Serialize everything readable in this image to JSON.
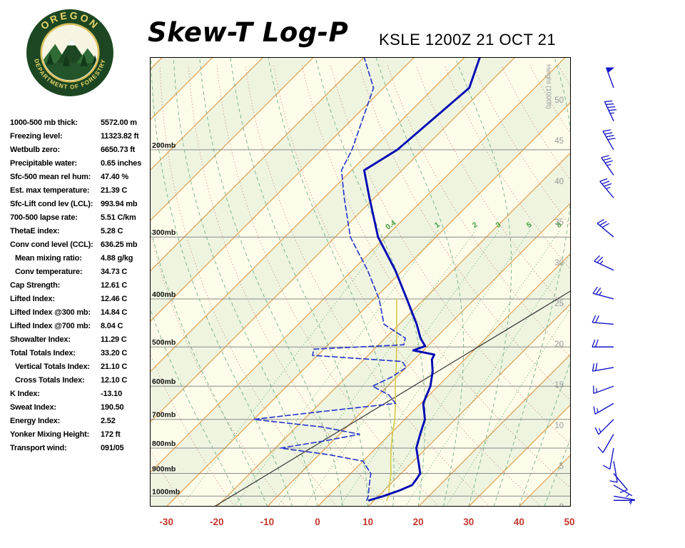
{
  "header": {
    "title": "Skew-T Log-P",
    "station": "KSLE 1200Z 21 OCT 21",
    "logo": {
      "top_text": "OREGON",
      "bottom_text": "DEPARTMENT OF FORESTRY"
    }
  },
  "indices": [
    {
      "label": "1000-500 mb thick:",
      "value": "5572.00 m",
      "indent": false
    },
    {
      "label": "Freezing level:",
      "value": "11323.82 ft",
      "indent": false
    },
    {
      "label": "Wetbulb zero:",
      "value": "6650.73 ft",
      "indent": false
    },
    {
      "label": "Precipitable water:",
      "value": "0.65 inches",
      "indent": false
    },
    {
      "label": "Sfc-500 mean rel hum:",
      "value": "47.40 %",
      "indent": false
    },
    {
      "label": "Est. max temperature:",
      "value": "21.39 C",
      "indent": false
    },
    {
      "label": "Sfc-Lift cond lev (LCL):",
      "value": "993.94 mb",
      "indent": false
    },
    {
      "label": "700-500 lapse rate:",
      "value": "5.51 C/km",
      "indent": false
    },
    {
      "label": "ThetaE index:",
      "value": "5.28 C",
      "indent": false
    },
    {
      "label": "Conv cond level (CCL):",
      "value": "636.25 mb",
      "indent": false
    },
    {
      "label": "Mean mixing ratio:",
      "value": "4.88 g/kg",
      "indent": true
    },
    {
      "label": "Conv temperature:",
      "value": "34.73 C",
      "indent": true
    },
    {
      "label": "Cap Strength:",
      "value": "12.61 C",
      "indent": false
    },
    {
      "label": "Lifted Index:",
      "value": "12.46 C",
      "indent": false
    },
    {
      "label": "Lifted Index @300 mb:",
      "value": "14.84 C",
      "indent": false
    },
    {
      "label": "Lifted Index @700 mb:",
      "value": "8.04 C",
      "indent": false
    },
    {
      "label": "Showalter Index:",
      "value": "11.29 C",
      "indent": false
    },
    {
      "label": "Total Totals Index:",
      "value": "33.20 C",
      "indent": false
    },
    {
      "label": "Vertical Totals Index:",
      "value": "21.10 C",
      "indent": true
    },
    {
      "label": "Cross Totals Index:",
      "value": "12.10 C",
      "indent": true
    },
    {
      "label": "K Index:",
      "value": "-13.10",
      "indent": false
    },
    {
      "label": "Sweat Index:",
      "value": "190.50",
      "indent": false
    },
    {
      "label": "Energy Index:",
      "value": "2.52",
      "indent": false
    },
    {
      "label": "Yonker Mixing Height:",
      "value": "172 ft",
      "indent": false
    },
    {
      "label": "Transport wind:",
      "value": "091/05",
      "indent": false
    }
  ],
  "chart_data": {
    "type": "skewt-log-p",
    "title": "Skew-T Log-P",
    "station_time": "KSLE 1200Z 21 OCT 21",
    "pressure_axis": {
      "top_mb": 130,
      "bottom_mb": 1050,
      "gridlines_mb": [
        200,
        300,
        400,
        500,
        600,
        700,
        800,
        900,
        1000
      ],
      "unit": "mb"
    },
    "temperature_axis": {
      "ticks_c": [
        -30,
        -20,
        -10,
        0,
        10,
        20,
        30,
        40,
        50
      ],
      "unit": "C"
    },
    "height_axis": {
      "label": "Height (1000ft)",
      "ticks_kft": [
        50,
        45,
        40,
        35,
        30,
        25,
        20,
        15,
        10,
        5,
        0
      ]
    },
    "mixing_ratio_lines_gkg": [
      0.4,
      1,
      2,
      3,
      5,
      8,
      12,
      20
    ],
    "mixing_ratio_labels": [
      "0.4",
      "1",
      "2",
      "3",
      "5",
      "8"
    ],
    "temperature_profile": [
      [
        1020,
        9
      ],
      [
        1000,
        11
      ],
      [
        975,
        13
      ],
      [
        950,
        14.5
      ],
      [
        925,
        14.2
      ],
      [
        900,
        13.8
      ],
      [
        850,
        11
      ],
      [
        800,
        8
      ],
      [
        750,
        6
      ],
      [
        700,
        4
      ],
      [
        650,
        0.5
      ],
      [
        600,
        -1.5
      ],
      [
        560,
        -4
      ],
      [
        530,
        -6.5
      ],
      [
        518,
        -7
      ],
      [
        508,
        -12
      ],
      [
        498,
        -10.5
      ],
      [
        480,
        -13
      ],
      [
        450,
        -16.5
      ],
      [
        400,
        -23.5
      ],
      [
        350,
        -31.5
      ],
      [
        300,
        -41.5
      ],
      [
        250,
        -51
      ],
      [
        220,
        -57.5
      ],
      [
        200,
        -55
      ],
      [
        150,
        -53
      ],
      [
        130,
        -57
      ]
    ],
    "dewpoint_profile": [
      [
        1020,
        8.5
      ],
      [
        1000,
        8
      ],
      [
        975,
        7
      ],
      [
        950,
        6
      ],
      [
        925,
        5
      ],
      [
        900,
        4
      ],
      [
        875,
        2
      ],
      [
        850,
        0
      ],
      [
        825,
        -8
      ],
      [
        800,
        -19
      ],
      [
        775,
        -12
      ],
      [
        750,
        -6
      ],
      [
        725,
        -15
      ],
      [
        700,
        -30
      ],
      [
        675,
        -18
      ],
      [
        650,
        -5
      ],
      [
        625,
        -8
      ],
      [
        600,
        -13
      ],
      [
        575,
        -11
      ],
      [
        550,
        -10
      ],
      [
        535,
        -12
      ],
      [
        520,
        -31
      ],
      [
        505,
        -32
      ],
      [
        495,
        -15
      ],
      [
        480,
        -16
      ],
      [
        450,
        -23
      ],
      [
        400,
        -29
      ],
      [
        350,
        -37
      ],
      [
        300,
        -47
      ],
      [
        250,
        -56
      ],
      [
        220,
        -62
      ],
      [
        200,
        -64
      ],
      [
        150,
        -72
      ],
      [
        130,
        -80
      ]
    ],
    "parcel_path": [
      [
        1020,
        12.5
      ],
      [
        1000,
        12
      ],
      [
        950,
        10
      ],
      [
        900,
        8
      ],
      [
        850,
        5.5
      ],
      [
        800,
        3
      ],
      [
        750,
        0.5
      ],
      [
        700,
        -2
      ],
      [
        650,
        -5
      ],
      [
        600,
        -8.5
      ],
      [
        550,
        -12
      ],
      [
        500,
        -16
      ],
      [
        450,
        -20.5
      ],
      [
        400,
        -25.5
      ]
    ],
    "wind_barbs_format": "[mb, deg_from, kt]",
    "wind_barbs": [
      [
        1020,
        90,
        5
      ],
      [
        1000,
        100,
        5
      ],
      [
        950,
        120,
        5
      ],
      [
        900,
        140,
        10
      ],
      [
        850,
        170,
        10
      ],
      [
        800,
        190,
        10
      ],
      [
        750,
        210,
        10
      ],
      [
        700,
        225,
        15
      ],
      [
        650,
        240,
        15
      ],
      [
        600,
        250,
        15
      ],
      [
        550,
        260,
        20
      ],
      [
        500,
        270,
        20
      ],
      [
        450,
        275,
        20
      ],
      [
        400,
        285,
        25
      ],
      [
        350,
        295,
        25
      ],
      [
        300,
        310,
        30
      ],
      [
        250,
        320,
        35
      ],
      [
        225,
        325,
        35
      ],
      [
        200,
        330,
        40
      ],
      [
        175,
        335,
        45
      ],
      [
        150,
        340,
        50
      ]
    ],
    "reference_line": {
      "x1": 0.153,
      "y1": 1.0,
      "x2": 1.0,
      "y2": 0.52
    },
    "colors": {
      "temperature": "#0008B4",
      "dewpoint": "#2233CC",
      "parcel": "#D8C84A",
      "isotherm": "#E2973F",
      "dry_adiabat": "#CC7A7A",
      "moist_adiabat": "#55A070",
      "mixing_ratio": "#3FA03F",
      "wind_barb": "#1515C8",
      "pressure_line": "#8A8A8A",
      "height_label": "#9A9A9A",
      "background": "#FDFCEA",
      "band": "#EEF4E0",
      "tick_red": "#C3362B"
    }
  }
}
